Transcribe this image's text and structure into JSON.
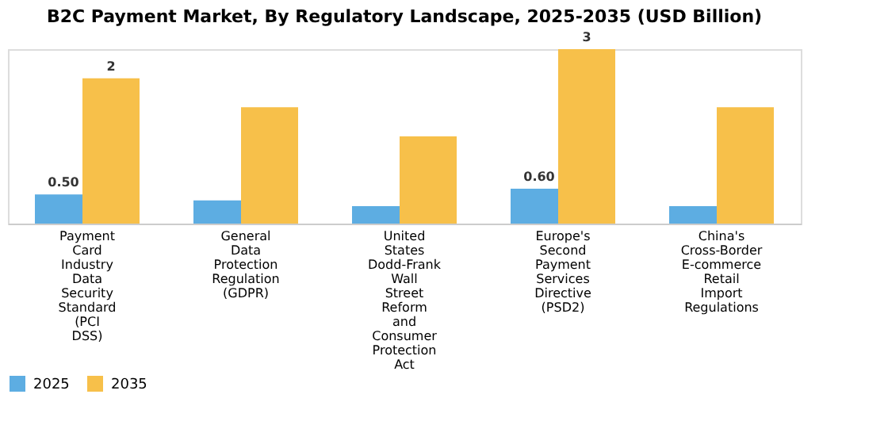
{
  "chart_data": {
    "type": "bar",
    "title": "B2C Payment Market, By Regulatory Landscape, 2025-2035 (USD Billion)",
    "categories": [
      "Payment Card Industry Data Security Standard (PCI DSS)",
      "General Data Protection Regulation (GDPR)",
      "United States Dodd-Frank Wall Street Reform and Consumer Protection Act",
      "Europe's Second Payment Services Directive (PSD2)",
      "China's Cross-Border E-commerce Retail Import Regulations"
    ],
    "series": [
      {
        "name": "2025",
        "color": "#5dade2",
        "values": [
          0.5,
          0.4,
          0.3,
          0.6,
          0.3
        ],
        "value_labels": [
          "0.50",
          null,
          null,
          "0.60",
          null
        ]
      },
      {
        "name": "2035",
        "color": "#f7c04a",
        "values": [
          2.5,
          2.0,
          1.5,
          3.0,
          2.0
        ],
        "value_labels": [
          "2",
          null,
          null,
          "3",
          null
        ]
      }
    ],
    "legend": "bottom",
    "grid": false
  }
}
